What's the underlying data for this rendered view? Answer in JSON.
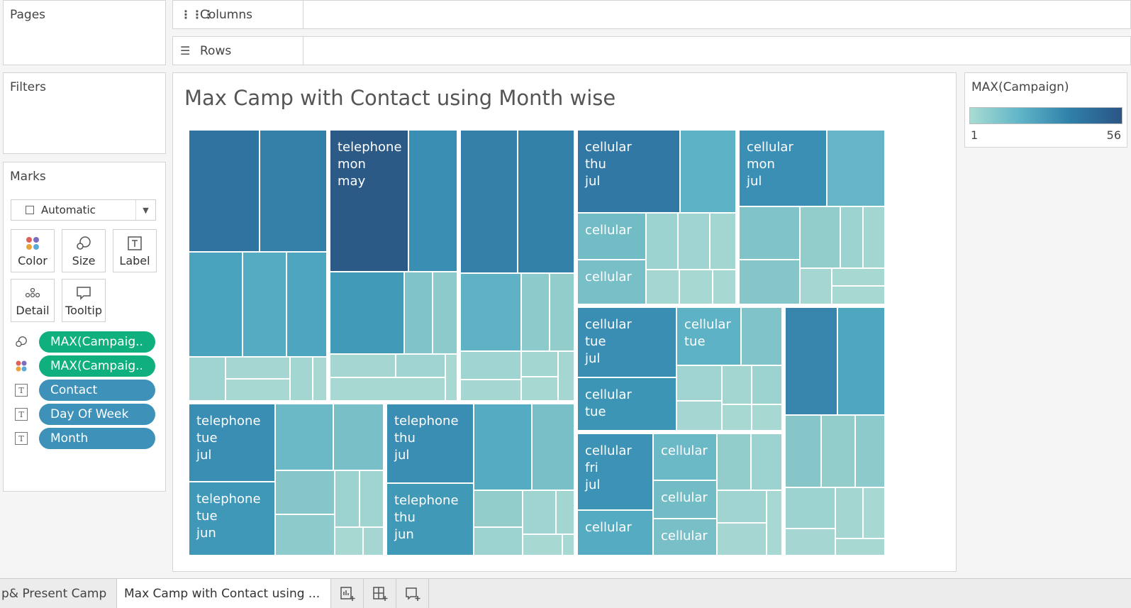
{
  "shelves": {
    "pages": "Pages",
    "filters": "Filters",
    "columns": "Columns",
    "rows": "Rows",
    "columns_icon": "column-bars-icon",
    "rows_icon": "row-lines-icon"
  },
  "marks": {
    "title": "Marks",
    "mark_type": "Automatic",
    "buttons": [
      {
        "label": "Color",
        "icon": "color-dots-icon"
      },
      {
        "label": "Size",
        "icon": "size-shapes-icon"
      },
      {
        "label": "Label",
        "icon": "label-t-icon"
      },
      {
        "label": "Detail",
        "icon": "detail-dots-icon"
      },
      {
        "label": "Tooltip",
        "icon": "tooltip-bubble-icon"
      }
    ],
    "pills": [
      {
        "label": "MAX(Campaig..",
        "icon": "size-shapes-icon",
        "color": "#10b07e"
      },
      {
        "label": "MAX(Campaig..",
        "icon": "color-dots-icon",
        "color": "#10b07e"
      },
      {
        "label": "Contact",
        "icon": "label-t-icon",
        "color": "#3e91b8"
      },
      {
        "label": "Day Of Week",
        "icon": "label-t-icon",
        "color": "#3e91b8"
      },
      {
        "label": "Month",
        "icon": "label-t-icon",
        "color": "#3e91b8"
      }
    ]
  },
  "viz": {
    "title": "Max Camp with Contact using Month wise"
  },
  "legend": {
    "title": "MAX(Campaign)",
    "min": "1",
    "max": "56",
    "color_low": "#a8dcd2",
    "color_high": "#2c5585"
  },
  "tabs": {
    "prev_tab": "p& Present Camp",
    "active_tab": "Max Camp with Contact using ...",
    "icons": [
      "new-worksheet-icon",
      "new-dashboard-icon",
      "new-story-icon"
    ]
  },
  "chart_data": {
    "type": "treemap",
    "title": "Max Camp with Contact using Month wise",
    "size_measure": "MAX(Campaign)",
    "color_measure": "MAX(Campaign)",
    "color_range": [
      1,
      56
    ],
    "label_fields": [
      "Contact",
      "Day Of Week",
      "Month"
    ],
    "labeled_cells": [
      {
        "contact": "telephone",
        "day": "mon",
        "month": "may"
      },
      {
        "contact": "cellular",
        "day": "thu",
        "month": "jul"
      },
      {
        "contact": "cellular",
        "day": "mon",
        "month": "jul"
      },
      {
        "contact": "cellular",
        "day": "",
        "month": ""
      },
      {
        "contact": "cellular",
        "day": "",
        "month": ""
      },
      {
        "contact": "cellular",
        "day": "tue",
        "month": "jul"
      },
      {
        "contact": "cellular",
        "day": "tue",
        "month": ""
      },
      {
        "contact": "cellular",
        "day": "tue",
        "month": ""
      },
      {
        "contact": "telephone",
        "day": "tue",
        "month": "jul"
      },
      {
        "contact": "telephone",
        "day": "tue",
        "month": "jun"
      },
      {
        "contact": "telephone",
        "day": "thu",
        "month": "jul"
      },
      {
        "contact": "telephone",
        "day": "thu",
        "month": "jun"
      },
      {
        "contact": "cellular",
        "day": "fri",
        "month": "jul"
      },
      {
        "contact": "cellular",
        "day": "",
        "month": ""
      },
      {
        "contact": "cellular",
        "day": "",
        "month": ""
      },
      {
        "contact": "cellular",
        "day": "",
        "month": ""
      },
      {
        "contact": "cellular",
        "day": "",
        "month": ""
      }
    ]
  }
}
